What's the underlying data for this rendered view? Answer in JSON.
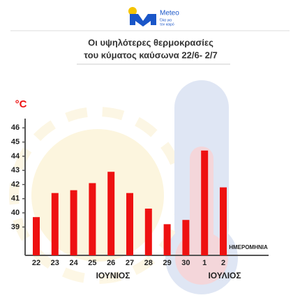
{
  "logo": {
    "name": "Meteo",
    "tagline": [
      "Όλα για",
      "τον καιρό"
    ]
  },
  "chart_data": {
    "type": "bar",
    "title": [
      "Οι υψηλότερες θερμοκρασίες",
      "του κύματος καύσωνα 22/6- 2/7"
    ],
    "y_unit": "°C",
    "x_label": "ΗΜΕΡΟΜΗΝΙΑ",
    "month_labels": [
      "ΙΟΥΝΙΟΣ",
      "ΙΟΥΛΙΟΣ"
    ],
    "categories": [
      "22",
      "23",
      "24",
      "25",
      "26",
      "27",
      "28",
      "29",
      "30",
      "1",
      "2"
    ],
    "values": [
      39.7,
      41.4,
      41.6,
      42.1,
      42.9,
      41.4,
      40.3,
      39.2,
      39.5,
      44.4,
      41.8
    ],
    "color": "#ee1111",
    "ylim": [
      37,
      47
    ],
    "yticks": [
      39,
      40,
      41,
      42,
      43,
      44,
      45,
      46
    ]
  }
}
